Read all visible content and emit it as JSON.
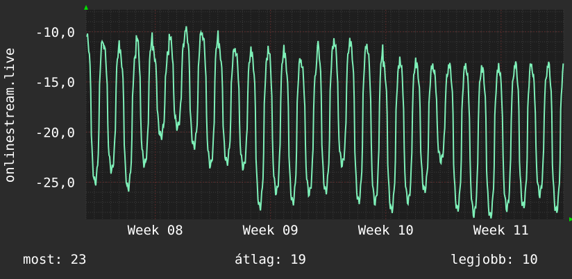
{
  "colors": {
    "background": "#2b2b2b",
    "plot_background": "#1e1e1e",
    "grid_major": "#5a2b2b",
    "grid_minor": "#3d3d3d",
    "series": "#7ef0b8",
    "axis_arrow": "#00dd00"
  },
  "chart_data": {
    "type": "line",
    "ylabel": "onlinestream.live",
    "ylim": [
      -28.7,
      -7.8
    ],
    "yticks": [
      {
        "value": -10,
        "label": "-10,0"
      },
      {
        "value": -15,
        "label": "-15,0"
      },
      {
        "value": -20,
        "label": "-20,0"
      },
      {
        "value": -25,
        "label": "-25,0"
      }
    ],
    "xlim_days": [
      0,
      29
    ],
    "xticks": [
      {
        "day": 4.2,
        "label": "Week 08"
      },
      {
        "day": 11.2,
        "label": "Week 09"
      },
      {
        "day": 18.2,
        "label": "Week 10"
      },
      {
        "day": 25.2,
        "label": "Week 11"
      }
    ],
    "grid": true,
    "series": [
      {
        "peaks": [
          -10.5,
          -11.2,
          -12.1,
          -10.4,
          -11.8,
          -10.3,
          -9.8,
          -10.2,
          -11.5,
          -11.8,
          -12.3,
          -11.6,
          -12.4,
          -13.0,
          -11.2,
          -10.9,
          -11.2,
          -11.5,
          -13.2,
          -12.8,
          -13.3,
          -13.5,
          -13.3,
          -13.5,
          -13.7,
          -13.5,
          -13.1,
          -13.6,
          -13.1,
          -13.6
        ],
        "troughs": [
          -25.0,
          -23.8,
          -25.6,
          -23.2,
          -20.4,
          -19.5,
          -21.4,
          -23.3,
          -23.0,
          -23.5,
          -27.5,
          -26.0,
          -27.0,
          -26.1,
          -25.9,
          -23.2,
          -26.9,
          -27.0,
          -27.8,
          -26.9,
          -25.8,
          -22.8,
          -27.7,
          -28.2,
          -28.4,
          -27.6,
          -27.4,
          -26.2,
          -27.9,
          -28.0
        ]
      }
    ]
  },
  "stats": {
    "current": "most: 23",
    "average": "átlag: 19",
    "best": "legjobb: 10"
  }
}
